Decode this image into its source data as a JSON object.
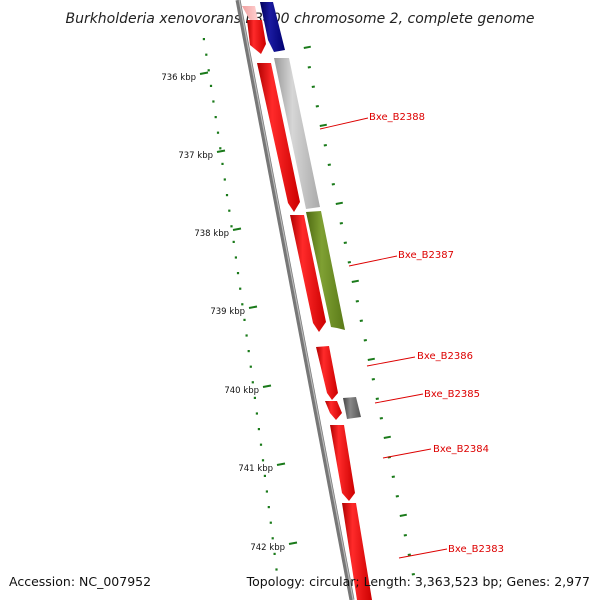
{
  "title": "Burkholderia xenovorans LB400 chromosome 2, complete genome",
  "footer": {
    "accession": "Accession: NC_007952",
    "summary": "Topology: circular; Length: 3,363,523 bp; Genes: 2,977"
  },
  "ticks": [
    "736 kbp",
    "737 kbp",
    "738 kbp",
    "739 kbp",
    "740 kbp",
    "741 kbp",
    "742 kbp"
  ],
  "genes": [
    {
      "label": "Bxe_B2388"
    },
    {
      "label": "Bxe_B2387"
    },
    {
      "label": "Bxe_B2386"
    },
    {
      "label": "Bxe_B2385"
    },
    {
      "label": "Bxe_B2384"
    },
    {
      "label": "Bxe_B2383"
    }
  ],
  "colors": {
    "cds": "#ff0000",
    "backbone": "#888888",
    "ruler": "#1a7a1a",
    "label": "#dd0000",
    "gray_feature": "#c0c0c0",
    "olive_feature": "#6b8e23",
    "navy_feature": "#000080",
    "dark_gray_feature": "#666666"
  }
}
